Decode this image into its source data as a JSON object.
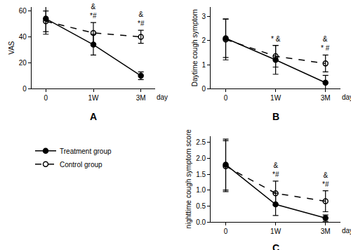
{
  "chart_data": [
    {
      "type": "line",
      "label": "A",
      "y_label": "VAS",
      "x_label": "day",
      "categories": [
        "0",
        "1W",
        "3M"
      ],
      "ylim": [
        0,
        63
      ],
      "yticks": [
        0,
        20,
        40,
        60
      ],
      "grid": false,
      "legend": "lower left",
      "series": [
        {
          "name": "Treatment group",
          "color": "#000000",
          "marker": "circle",
          "line_style": "solid",
          "values": [
            54,
            34,
            10
          ],
          "errors": [
            12,
            8,
            3
          ]
        },
        {
          "name": "Control group",
          "color": "#000000",
          "marker": "circle-open",
          "line_style": "dash",
          "values": [
            52,
            43,
            40
          ],
          "errors": [
            8,
            8,
            5
          ]
        }
      ],
      "marks": [
        {
          "x": "1W",
          "lines": [
            "&",
            "*#"
          ]
        },
        {
          "x": "3M",
          "lines": [
            "&",
            "*#"
          ]
        }
      ]
    },
    {
      "type": "line",
      "label": "B",
      "y_label": "Daytime cough symptom",
      "x_label": "day",
      "categories": [
        "0",
        "1W",
        "3M"
      ],
      "ylim": [
        0,
        3.4
      ],
      "yticks": [
        0,
        1,
        2,
        3
      ],
      "grid": false,
      "series": [
        {
          "name": "Treatment group",
          "color": "#000000",
          "marker": "circle",
          "line_style": "solid",
          "values": [
            2.1,
            1.2,
            0.25
          ],
          "errors": [
            0.8,
            0.6,
            0.3
          ]
        },
        {
          "name": "Control group",
          "color": "#000000",
          "marker": "circle-open",
          "line_style": "dash",
          "values": [
            2.05,
            1.35,
            1.05
          ],
          "errors": [
            0.85,
            0.45,
            0.35
          ]
        }
      ],
      "marks": [
        {
          "x": "1W",
          "lines": [
            "* &"
          ]
        },
        {
          "x": "3M",
          "lines": [
            "&",
            "* #"
          ]
        }
      ]
    },
    {
      "type": "line",
      "label": "C",
      "y_label": "nighttime cough symptom score",
      "x_label": "day",
      "categories": [
        "0",
        "1W",
        "3M"
      ],
      "ylim": [
        0,
        2.7
      ],
      "yticks": [
        {
          "value": 0,
          "label": "0.0"
        },
        0.5,
        {
          "value": 1,
          "label": "1.0"
        },
        1.5,
        {
          "value": 2,
          "label": "2.0"
        },
        2.5
      ],
      "grid": false,
      "series": [
        {
          "name": "Treatment group",
          "color": "#000000",
          "marker": "circle",
          "line_style": "solid",
          "values": [
            1.8,
            0.55,
            0.12
          ],
          "errors": [
            0.8,
            0.35,
            0.1
          ]
        },
        {
          "name": "Control group",
          "color": "#000000",
          "marker": "circle-open",
          "line_style": "dash",
          "values": [
            1.75,
            0.9,
            0.65
          ],
          "errors": [
            0.8,
            0.38,
            0.33
          ]
        }
      ],
      "marks": [
        {
          "x": "1W",
          "lines": [
            "&",
            "*#"
          ]
        },
        {
          "x": "3M",
          "lines": [
            "&",
            "*#"
          ]
        }
      ]
    }
  ]
}
